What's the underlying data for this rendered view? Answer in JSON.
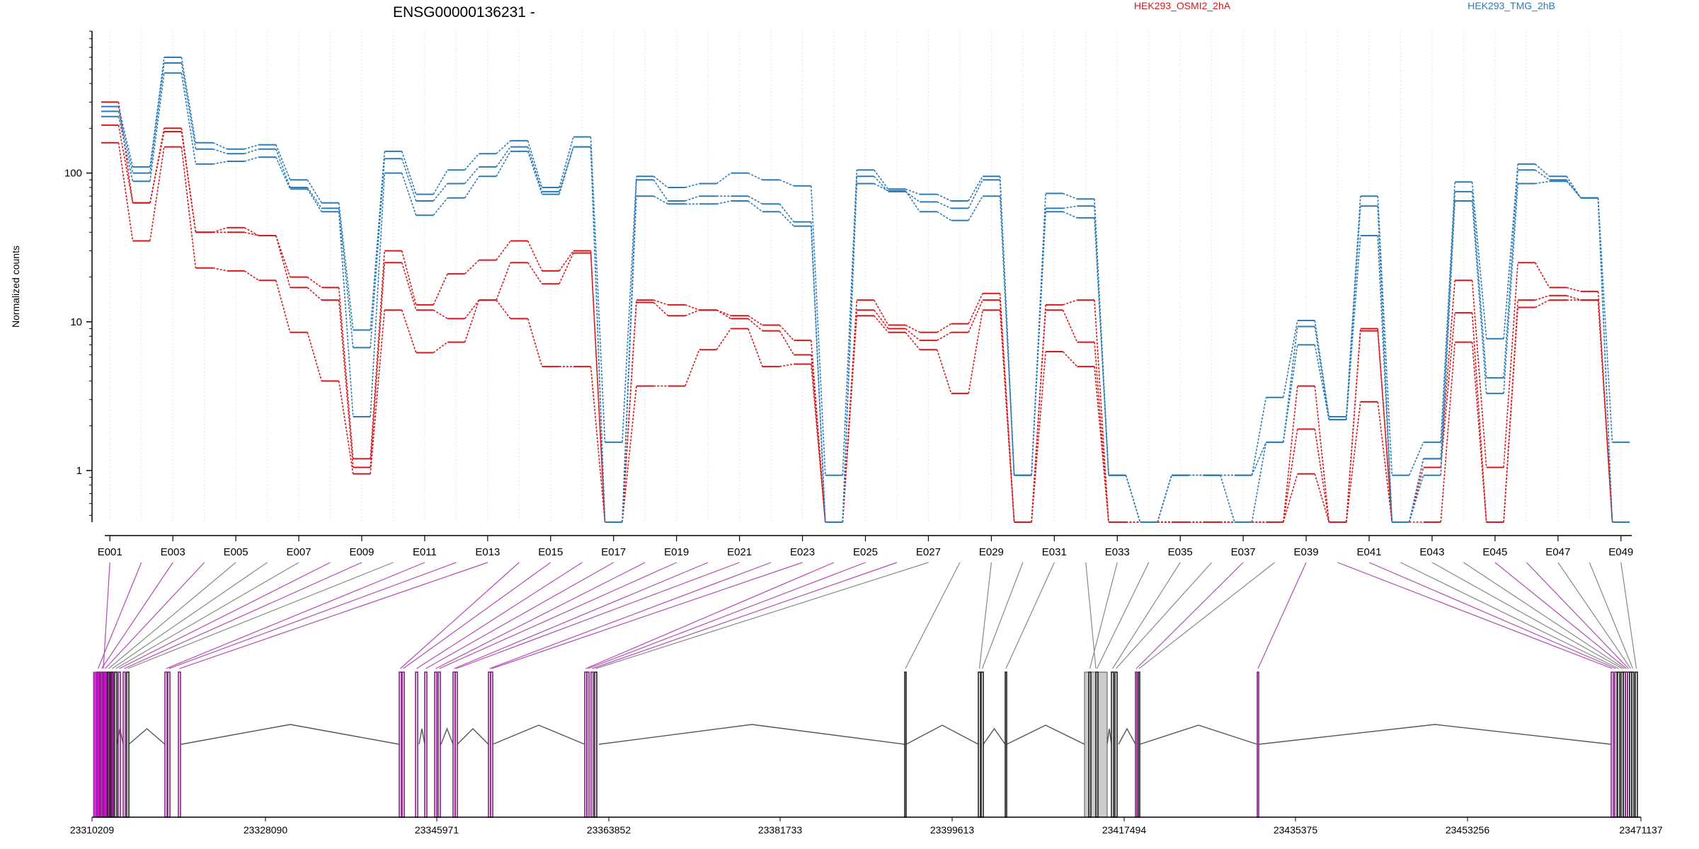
{
  "chart_data": {
    "type": "line",
    "title": "ENSG00000136231 -",
    "ylabel": "Normalized counts",
    "xlabel": "",
    "yscale": "log",
    "ylim": [
      0.45,
      900
    ],
    "yticks": [
      "1",
      "10",
      "100"
    ],
    "grid": "vertical dotted lines at each exon",
    "legend_placement": "top",
    "categories": [
      "E001",
      "E002",
      "E003",
      "E004",
      "E005",
      "E006",
      "E007",
      "E008",
      "E009",
      "E010",
      "E011",
      "E012",
      "E013",
      "E014",
      "E015",
      "E016",
      "E017",
      "E018",
      "E019",
      "E020",
      "E021",
      "E022",
      "E023",
      "E024",
      "E025",
      "E026",
      "E027",
      "E028",
      "E029",
      "E030",
      "E031",
      "E032",
      "E033",
      "E034",
      "E035",
      "E036",
      "E037",
      "E038",
      "E039",
      "E040",
      "E041",
      "E042",
      "E043",
      "E044",
      "E045",
      "E046",
      "E047",
      "E048",
      "E049"
    ],
    "tick_labels": [
      "E001",
      "E003",
      "E005",
      "E007",
      "E009",
      "E011",
      "E013",
      "E015",
      "E017",
      "E019",
      "E021",
      "E023",
      "E025",
      "E027",
      "E029",
      "E031",
      "E033",
      "E035",
      "E037",
      "E039",
      "E041",
      "E043",
      "E045",
      "E047",
      "E049"
    ],
    "conditions": [
      {
        "label": "HEK293_OSMI2_2hA",
        "color": "#d7191c"
      },
      {
        "label": "HEK293_TMG_2hB",
        "color": "#2c7bb6"
      }
    ],
    "series": [
      {
        "condition": 0,
        "values": [
          300,
          63,
          190,
          40,
          43,
          38,
          20,
          17,
          1.2,
          30,
          13,
          21,
          26,
          35,
          22,
          30,
          0.45,
          14,
          13,
          12,
          11,
          9.5,
          7.5,
          0.45,
          14,
          9.5,
          8.5,
          9.7,
          15.5,
          0.45,
          13,
          14,
          0.45,
          0.45,
          0.45,
          0.45,
          0.45,
          0.45,
          3.7,
          0.45,
          9,
          0.45,
          1.2,
          19,
          1.05,
          25,
          17,
          16,
          0.45
        ]
      },
      {
        "condition": 0,
        "values": [
          210,
          63,
          200,
          40,
          40,
          38,
          17,
          14,
          1.05,
          25,
          12,
          10.5,
          14,
          25,
          18,
          29,
          0.45,
          13.5,
          11,
          12,
          10.5,
          8.7,
          6,
          0.45,
          12,
          9,
          7.5,
          8.5,
          14,
          0.45,
          12,
          7.3,
          0.45,
          0.45,
          0.45,
          0.45,
          0.45,
          0.45,
          1.9,
          0.45,
          8.7,
          0.45,
          1.05,
          11.5,
          0.45,
          14,
          15,
          14,
          0.45
        ]
      },
      {
        "condition": 0,
        "values": [
          160,
          35,
          150,
          23,
          22,
          19,
          8.5,
          4,
          0.95,
          12,
          6.2,
          7.3,
          14,
          10.5,
          5,
          5,
          0.45,
          3.7,
          3.7,
          6.5,
          9,
          5,
          5.2,
          0.45,
          11,
          8.5,
          6.5,
          3.3,
          12,
          0.45,
          6.3,
          5,
          0.45,
          0.45,
          0.45,
          0.45,
          0.45,
          0.45,
          0.95,
          0.45,
          2.9,
          0.45,
          0.45,
          7.3,
          0.45,
          12.5,
          14,
          14,
          0.45
        ]
      },
      {
        "condition": 1,
        "values": [
          280,
          110,
          600,
          160,
          145,
          155,
          90,
          63,
          8.8,
          140,
          72,
          105,
          135,
          165,
          80,
          175,
          1.55,
          95,
          80,
          85,
          100,
          90,
          82,
          0.93,
          105,
          78,
          72,
          65,
          95,
          0.93,
          73,
          67,
          0.93,
          0.45,
          0.93,
          0.93,
          0.93,
          3.1,
          10.2,
          2.3,
          70,
          0.93,
          1.55,
          87,
          7.7,
          115,
          95,
          68,
          1.55
        ]
      },
      {
        "condition": 1,
        "values": [
          260,
          100,
          550,
          145,
          135,
          145,
          80,
          58,
          6.7,
          125,
          65,
          85,
          110,
          150,
          75,
          150,
          0.45,
          90,
          65,
          70,
          70,
          62,
          47,
          0.45,
          95,
          75,
          64,
          58,
          90,
          0.93,
          58,
          60,
          0.93,
          0.45,
          0.93,
          0.93,
          0.45,
          1.55,
          9.3,
          2.2,
          60,
          0.45,
          1.2,
          75,
          4.2,
          105,
          90,
          68,
          0.45
        ]
      },
      {
        "condition": 1,
        "values": [
          240,
          88,
          470,
          115,
          120,
          128,
          78,
          55,
          2.3,
          100,
          52,
          68,
          95,
          140,
          72,
          150,
          0.45,
          70,
          62,
          62,
          65,
          55,
          44,
          0.45,
          85,
          76,
          55,
          48,
          70,
          0.93,
          55,
          50,
          0.93,
          0.45,
          0.93,
          0.93,
          0.93,
          1.55,
          7,
          2.2,
          38,
          0.45,
          0.93,
          65,
          3.3,
          85,
          88,
          68,
          0.45
        ]
      }
    ],
    "genomic_ticks": [
      "23310209",
      "23328090",
      "23345971",
      "23363852",
      "23381733",
      "23399613",
      "23417494",
      "23435375",
      "23453256",
      "23471137"
    ]
  }
}
